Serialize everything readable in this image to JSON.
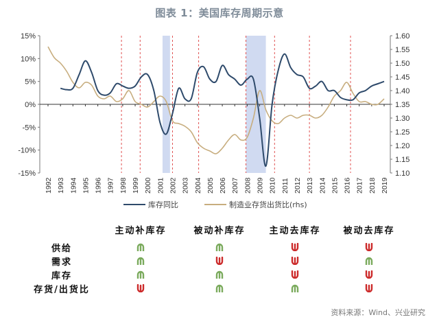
{
  "title": "图表 1：美国库存周期示意",
  "source": "资料来源：Wind、兴业研究",
  "colors": {
    "inventory_yoy": "#2e4a6b",
    "ratio": "#c7ad7e",
    "recession_shade": "#c8d3ee",
    "divider": "#e05050",
    "up_arrow": "#7aaa5c",
    "down_arrow": "#cc2a2a"
  },
  "chart_data": {
    "type": "line",
    "title": "图表 1：美国库存周期示意",
    "xlabel": "",
    "ylabel_left": "库存同比 (%)",
    "ylabel_right": "制造业存货出货比",
    "x_ticks": [
      "1992",
      "1993",
      "1994",
      "1995",
      "1996",
      "1997",
      "1998",
      "1999",
      "2000",
      "2001",
      "2002",
      "2003",
      "2004",
      "2005",
      "2006",
      "2007",
      "2008",
      "2009",
      "2010",
      "2011",
      "2012",
      "2013",
      "2014",
      "2015",
      "2016",
      "2017",
      "2018",
      "2019"
    ],
    "y_left_ticks": [
      "15%",
      "10%",
      "5%",
      "0%",
      "-5%",
      "-10%",
      "-15%"
    ],
    "y_left_range": [
      -15,
      15
    ],
    "y_right_ticks": [
      "1.60",
      "1.55",
      "1.50",
      "1.45",
      "1.40",
      "1.35",
      "1.30",
      "1.25",
      "1.20",
      "1.15",
      "1.10"
    ],
    "y_right_range": [
      1.1,
      1.6
    ],
    "legend": [
      "库存同比",
      "制造业存货出货比(rhs)"
    ],
    "legend_position": "bottom",
    "grid": false,
    "series": [
      {
        "name": "库存同比",
        "axis": "left",
        "x": [
          1993.0,
          1993.5,
          1994.0,
          1994.5,
          1995.0,
          1995.5,
          1996.0,
          1996.5,
          1997.0,
          1997.5,
          1998.0,
          1998.5,
          1999.0,
          1999.5,
          2000.0,
          2000.5,
          2001.0,
          2001.5,
          2002.0,
          2002.5,
          2003.0,
          2003.5,
          2004.0,
          2004.5,
          2005.0,
          2005.5,
          2006.0,
          2006.5,
          2007.0,
          2007.5,
          2008.0,
          2008.5,
          2009.0,
          2009.5,
          2010.0,
          2010.5,
          2011.0,
          2011.5,
          2012.0,
          2012.5,
          2013.0,
          2013.5,
          2014.0,
          2014.5,
          2015.0,
          2015.5,
          2016.0,
          2016.5,
          2017.0,
          2017.5,
          2018.0,
          2018.5,
          2019.0
        ],
        "values": [
          3.5,
          3.2,
          3.5,
          6.5,
          9.5,
          7,
          3,
          2,
          2.5,
          4.5,
          4,
          3.5,
          4,
          6,
          6.5,
          3,
          -4,
          -6.5,
          -2,
          3.5,
          1.2,
          1.2,
          7,
          8.2,
          5.5,
          5,
          8.5,
          6.5,
          5.5,
          4.2,
          5.5,
          5.5,
          -3,
          -13.5,
          0,
          7.5,
          11,
          8,
          6.5,
          6,
          3.5,
          4,
          5,
          3,
          3,
          1.5,
          1,
          1,
          2.5,
          3,
          4,
          4.5,
          5
        ]
      },
      {
        "name": "制造业存货出货比(rhs)",
        "axis": "right",
        "x": [
          1992.0,
          1992.5,
          1993.0,
          1993.5,
          1994.0,
          1994.5,
          1995.0,
          1995.5,
          1996.0,
          1996.5,
          1997.0,
          1997.5,
          1998.0,
          1998.5,
          1999.0,
          1999.5,
          2000.0,
          2000.5,
          2001.0,
          2001.5,
          2002.0,
          2002.5,
          2003.0,
          2003.5,
          2004.0,
          2004.5,
          2005.0,
          2005.5,
          2006.0,
          2006.5,
          2007.0,
          2007.5,
          2008.0,
          2008.5,
          2009.0,
          2009.5,
          2010.0,
          2010.5,
          2011.0,
          2011.5,
          2012.0,
          2012.5,
          2013.0,
          2013.5,
          2014.0,
          2014.5,
          2015.0,
          2015.5,
          2016.0,
          2016.5,
          2017.0,
          2017.5,
          2018.0,
          2018.5,
          2019.0
        ],
        "values": [
          1.56,
          1.52,
          1.5,
          1.47,
          1.43,
          1.41,
          1.43,
          1.42,
          1.38,
          1.37,
          1.38,
          1.36,
          1.37,
          1.4,
          1.36,
          1.35,
          1.34,
          1.36,
          1.38,
          1.36,
          1.29,
          1.28,
          1.27,
          1.25,
          1.21,
          1.19,
          1.18,
          1.17,
          1.19,
          1.22,
          1.24,
          1.22,
          1.23,
          1.3,
          1.4,
          1.33,
          1.29,
          1.28,
          1.3,
          1.31,
          1.3,
          1.31,
          1.31,
          1.3,
          1.31,
          1.34,
          1.38,
          1.4,
          1.43,
          1.39,
          1.36,
          1.36,
          1.35,
          1.35,
          1.37
        ]
      }
    ],
    "shaded_periods": [
      [
        2001.2,
        2001.8
      ],
      [
        2007.9,
        2009.5
      ]
    ],
    "divider_lines": [
      1997.9,
      1999.4,
      2002.0,
      2004.1,
      2007.9,
      2010.2,
      2013.0,
      2016.3
    ]
  },
  "table": {
    "headers": [
      "主动补库存",
      "被动补库存",
      "主动去库存",
      "被动去库存"
    ],
    "rows": [
      {
        "label": "供给",
        "values": [
          "up",
          "up",
          "down",
          "down"
        ]
      },
      {
        "label": "需求",
        "values": [
          "up",
          "down",
          "down",
          "up"
        ]
      },
      {
        "label": "库存",
        "values": [
          "up",
          "up",
          "down",
          "down"
        ]
      },
      {
        "label": "存货/出货比",
        "values": [
          "down",
          "up",
          "up",
          "down"
        ]
      }
    ]
  }
}
